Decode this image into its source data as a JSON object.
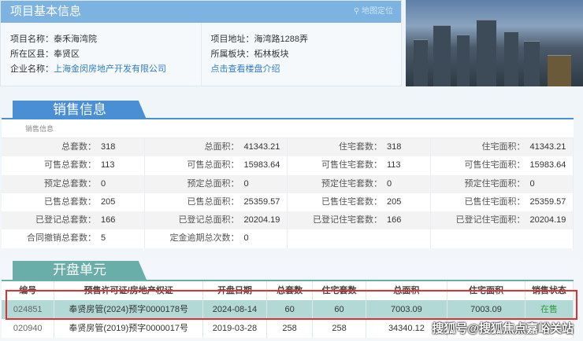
{
  "project_info": {
    "title": "项目基本信息",
    "map_link": "地图定位",
    "left": [
      {
        "label": "项目名称：",
        "value": "泰禾海湾院"
      },
      {
        "label": "所在区县：",
        "value": "奉贤区"
      },
      {
        "label": "企业名称：",
        "value": "上海金闵房地产开发有限公司"
      }
    ],
    "right": [
      {
        "label": "项目地址：",
        "value": "海湾路1288弄"
      },
      {
        "label": "所属板块：",
        "value": "柘林板块"
      }
    ],
    "intro_link": "点击查看楼盘介绍"
  },
  "sales": {
    "tab": "销售信息",
    "caption": "销售信息",
    "rows": [
      [
        [
          "总套数：",
          "318"
        ],
        [
          "总面积：",
          "41343.21"
        ],
        [
          "住宅套数：",
          "318"
        ],
        [
          "住宅面积：",
          "41343.21"
        ]
      ],
      [
        [
          "可售总套数：",
          "113"
        ],
        [
          "可售总面积：",
          "15983.64"
        ],
        [
          "可售住宅套数：",
          "113"
        ],
        [
          "可售住宅面积：",
          "15983.64"
        ]
      ],
      [
        [
          "预定总套数：",
          "0"
        ],
        [
          "预定总面积：",
          "0"
        ],
        [
          "预定住宅套数：",
          "0"
        ],
        [
          "预定住宅面积：",
          "0"
        ]
      ],
      [
        [
          "已售总套数：",
          "205"
        ],
        [
          "已售总面积：",
          "25359.57"
        ],
        [
          "已售住宅套数：",
          "205"
        ],
        [
          "已售住宅面积：",
          "25359.57"
        ]
      ],
      [
        [
          "已登记总套数：",
          "166"
        ],
        [
          "已登记总面积：",
          "20204.19"
        ],
        [
          "已登记住宅套数：",
          "166"
        ],
        [
          "已登记住宅面积：",
          "20204.19"
        ]
      ],
      [
        [
          "合同撤销总套数：",
          "5"
        ],
        [
          "定金逾期总次数：",
          "0"
        ],
        [
          "",
          ""
        ],
        [
          "",
          ""
        ]
      ]
    ]
  },
  "units": {
    "tab": "开盘单元",
    "headers": [
      "编号",
      "预售许可证/房地产权证",
      "开盘日期",
      "总套数",
      "住宅套数",
      "总面积",
      "住宅面积",
      "销售状态"
    ],
    "rows": [
      [
        "024851",
        "奉贤房管(2024)预字0000178号",
        "2024-08-14",
        "60",
        "60",
        "7003.09",
        "7003.09",
        "在售"
      ],
      [
        "020940",
        "奉贤房管(2019)预字0000017号",
        "2019-03-28",
        "258",
        "258",
        "34340.12",
        "",
        ""
      ]
    ]
  },
  "status_color": "#2e9a3e",
  "accent": "#4a8fd4",
  "watermark": "搜狐号@搜狐焦点嘉峪关站"
}
